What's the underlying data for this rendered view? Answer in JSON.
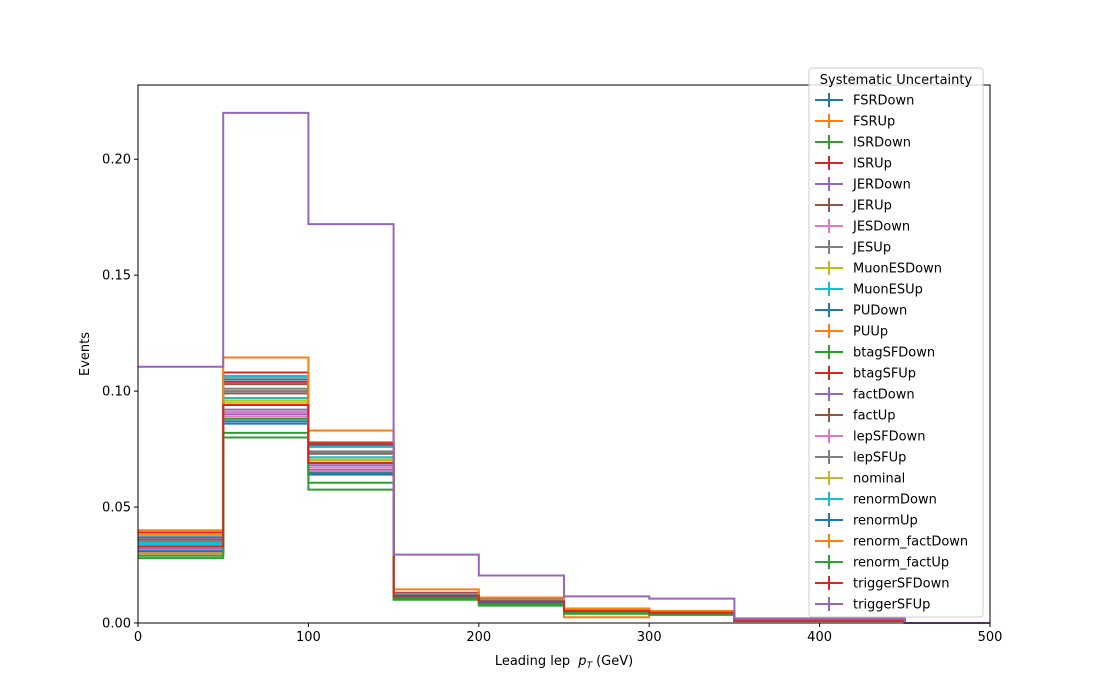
{
  "chart_data": {
    "type": "line",
    "style": "step-histogram",
    "xlabel": "Leading lep",
    "xlabel_var": "p",
    "xlabel_sub": "T",
    "xlabel_unit": "(GeV)",
    "ylabel": "Events",
    "xlim": [
      0,
      500
    ],
    "ylim": [
      0,
      0.232
    ],
    "xticks": [
      0,
      100,
      200,
      300,
      400,
      500
    ],
    "xtick_labels": [
      "0",
      "100",
      "200",
      "300",
      "400",
      "500"
    ],
    "yticks": [
      0.0,
      0.05,
      0.1,
      0.15,
      0.2
    ],
    "ytick_labels": [
      "0.00",
      "0.05",
      "0.10",
      "0.15",
      "0.20"
    ],
    "grid": false,
    "legend_title": "Systematic Uncertainty",
    "legend_position": "top-right",
    "bin_edges": [
      0,
      50,
      100,
      150,
      200,
      250,
      300,
      350,
      400,
      450,
      500
    ],
    "series": [
      {
        "name": "FSRDown",
        "color": "#1f77b4",
        "values": [
          0.03,
          0.086,
          0.064,
          0.011,
          0.009,
          0.005,
          0.004,
          0.001,
          0.001,
          0.0
        ]
      },
      {
        "name": "FSRUp",
        "color": "#ff7f0e",
        "values": [
          0.038,
          0.106,
          0.078,
          0.013,
          0.01,
          0.006,
          0.005,
          0.001,
          0.001,
          0.0
        ]
      },
      {
        "name": "ISRDown",
        "color": "#2ca02c",
        "values": [
          0.031,
          0.088,
          0.065,
          0.011,
          0.009,
          0.005,
          0.004,
          0.001,
          0.001,
          0.0
        ]
      },
      {
        "name": "ISRUp",
        "color": "#d62728",
        "values": [
          0.036,
          0.104,
          0.077,
          0.013,
          0.01,
          0.006,
          0.005,
          0.001,
          0.001,
          0.0
        ]
      },
      {
        "name": "JERDown",
        "color": "#9467bd",
        "values": [
          0.033,
          0.092,
          0.068,
          0.012,
          0.009,
          0.005,
          0.0045,
          0.001,
          0.001,
          0.0
        ]
      },
      {
        "name": "JERUp",
        "color": "#8c564b",
        "values": [
          0.034,
          0.099,
          0.073,
          0.012,
          0.01,
          0.0055,
          0.0045,
          0.001,
          0.001,
          0.0
        ]
      },
      {
        "name": "JESDown",
        "color": "#e377c2",
        "values": [
          0.032,
          0.091,
          0.067,
          0.0115,
          0.009,
          0.005,
          0.004,
          0.001,
          0.001,
          0.0
        ]
      },
      {
        "name": "JESUp",
        "color": "#7f7f7f",
        "values": [
          0.035,
          0.101,
          0.074,
          0.0125,
          0.01,
          0.0055,
          0.0045,
          0.001,
          0.001,
          0.0
        ]
      },
      {
        "name": "MuonESDown",
        "color": "#bcbd22",
        "values": [
          0.0335,
          0.095,
          0.07,
          0.012,
          0.0095,
          0.0052,
          0.0045,
          0.001,
          0.001,
          0.0
        ]
      },
      {
        "name": "MuonESUp",
        "color": "#17becf",
        "values": [
          0.0345,
          0.097,
          0.0715,
          0.0122,
          0.0097,
          0.0053,
          0.0045,
          0.001,
          0.001,
          0.0
        ]
      },
      {
        "name": "PUDown",
        "color": "#1f77b4",
        "values": [
          0.037,
          0.105,
          0.0765,
          0.0128,
          0.01,
          0.0058,
          0.0048,
          0.001,
          0.001,
          0.0
        ]
      },
      {
        "name": "PUUp",
        "color": "#ff7f0e",
        "values": [
          0.03,
          0.094,
          0.069,
          0.0115,
          0.0092,
          0.0025,
          0.005,
          0.001,
          0.001,
          0.0
        ]
      },
      {
        "name": "btagSFDown",
        "color": "#2ca02c",
        "values": [
          0.028,
          0.08,
          0.0575,
          0.01,
          0.0075,
          0.004,
          0.0035,
          0.0008,
          0.0008,
          0.0
        ]
      },
      {
        "name": "btagSFUp",
        "color": "#d62728",
        "values": [
          0.039,
          0.108,
          0.0775,
          0.013,
          0.0105,
          0.0062,
          0.005,
          0.0012,
          0.001,
          0.0
        ]
      },
      {
        "name": "factDown",
        "color": "#9467bd",
        "values": [
          0.032,
          0.09,
          0.066,
          0.0115,
          0.0088,
          0.005,
          0.0042,
          0.001,
          0.001,
          0.0
        ]
      },
      {
        "name": "factUp",
        "color": "#8c564b",
        "values": [
          0.0335,
          0.103,
          0.076,
          0.0125,
          0.0098,
          0.0056,
          0.0046,
          0.001,
          0.001,
          0.0
        ]
      },
      {
        "name": "lepSFDown",
        "color": "#e377c2",
        "values": [
          0.0315,
          0.089,
          0.0655,
          0.0112,
          0.0088,
          0.005,
          0.0042,
          0.001,
          0.001,
          0.0
        ]
      },
      {
        "name": "lepSFUp",
        "color": "#7f7f7f",
        "values": [
          0.0355,
          0.1,
          0.0735,
          0.0124,
          0.0099,
          0.0055,
          0.0046,
          0.001,
          0.001,
          0.0
        ]
      },
      {
        "name": "nominal",
        "color": "#bcbd22",
        "values": [
          0.0335,
          0.096,
          0.0705,
          0.012,
          0.0094,
          0.0052,
          0.0044,
          0.001,
          0.001,
          0.0
        ]
      },
      {
        "name": "renormDown",
        "color": "#17becf",
        "values": [
          0.034,
          0.1065,
          0.076,
          0.0126,
          0.01,
          0.0057,
          0.0047,
          0.001,
          0.001,
          0.0
        ]
      },
      {
        "name": "renormUp",
        "color": "#1f77b4",
        "values": [
          0.031,
          0.087,
          0.0645,
          0.0112,
          0.0086,
          0.0049,
          0.0041,
          0.001,
          0.001,
          0.0
        ]
      },
      {
        "name": "renorm_factDown",
        "color": "#ff7f0e",
        "values": [
          0.04,
          0.1145,
          0.083,
          0.0145,
          0.011,
          0.0062,
          0.0052,
          0.0012,
          0.0012,
          0.0
        ]
      },
      {
        "name": "renorm_factUp",
        "color": "#2ca02c",
        "values": [
          0.029,
          0.082,
          0.0605,
          0.0105,
          0.008,
          0.0045,
          0.0038,
          0.0009,
          0.0009,
          0.0
        ]
      },
      {
        "name": "triggerSFDown",
        "color": "#d62728",
        "values": [
          0.033,
          0.094,
          0.069,
          0.0118,
          0.0093,
          0.0052,
          0.0044,
          0.001,
          0.001,
          0.0
        ]
      },
      {
        "name": "triggerSFUp",
        "color": "#9467bd",
        "values": [
          0.1105,
          0.22,
          0.172,
          0.0295,
          0.0205,
          0.0115,
          0.0105,
          0.002,
          0.002,
          0.0
        ]
      }
    ]
  }
}
